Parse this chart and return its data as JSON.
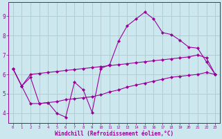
{
  "xlabel": "Windchill (Refroidissement éolien,°C)",
  "background_color": "#cce8ee",
  "grid_color": "#aacccc",
  "line_color": "#990099",
  "xlim": [
    -0.5,
    23.5
  ],
  "ylim": [
    3.5,
    9.7
  ],
  "yticks": [
    4,
    5,
    6,
    7,
    8,
    9
  ],
  "xticks": [
    0,
    1,
    2,
    3,
    4,
    5,
    6,
    7,
    8,
    9,
    10,
    11,
    12,
    13,
    14,
    15,
    16,
    17,
    18,
    19,
    20,
    21,
    22,
    23
  ],
  "series1_x": [
    0,
    1,
    2,
    3,
    4,
    5,
    6,
    7,
    8,
    9,
    10,
    11,
    12,
    13,
    14,
    15,
    16,
    17,
    18,
    19,
    20,
    21,
    22,
    23
  ],
  "series1_y": [
    6.3,
    5.4,
    5.85,
    4.5,
    4.55,
    4.0,
    3.8,
    5.6,
    5.2,
    4.05,
    6.3,
    6.5,
    7.7,
    8.5,
    8.85,
    9.2,
    8.85,
    8.15,
    8.05,
    7.75,
    7.4,
    7.35,
    6.65,
    6.0
  ],
  "series2_x": [
    0,
    1,
    2,
    3,
    4,
    5,
    6,
    7,
    8,
    9,
    10,
    11,
    12,
    13,
    14,
    15,
    16,
    17,
    18,
    19,
    20,
    21,
    22,
    23
  ],
  "series2_y": [
    6.3,
    5.4,
    6.0,
    6.05,
    6.1,
    6.15,
    6.2,
    6.25,
    6.3,
    6.35,
    6.4,
    6.45,
    6.5,
    6.55,
    6.6,
    6.65,
    6.7,
    6.75,
    6.8,
    6.85,
    6.9,
    7.0,
    6.85,
    6.0
  ],
  "series3_x": [
    0,
    1,
    2,
    3,
    4,
    5,
    6,
    7,
    8,
    9,
    10,
    11,
    12,
    13,
    14,
    15,
    16,
    17,
    18,
    19,
    20,
    21,
    22,
    23
  ],
  "series3_y": [
    6.3,
    5.4,
    4.5,
    4.5,
    4.55,
    4.6,
    4.7,
    4.75,
    4.8,
    4.85,
    4.95,
    5.1,
    5.2,
    5.35,
    5.45,
    5.55,
    5.65,
    5.75,
    5.85,
    5.9,
    5.95,
    6.0,
    6.1,
    6.0
  ]
}
